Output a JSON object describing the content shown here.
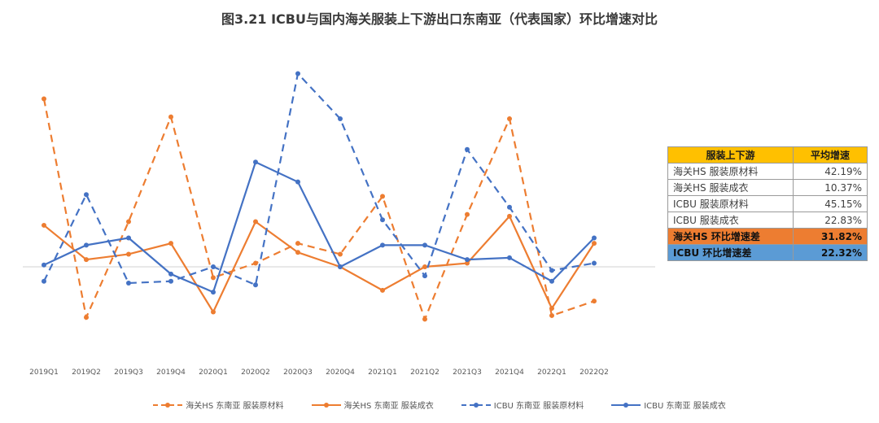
{
  "chart_data": {
    "type": "line",
    "title": "图3.21  ICBU与国内海关服装上下游出口东南亚（代表国家）环比增速对比",
    "categories": [
      "2019Q1",
      "2019Q2",
      "2019Q3",
      "2019Q4",
      "2020Q1",
      "2020Q2",
      "2020Q3",
      "2020Q4",
      "2021Q1",
      "2021Q2",
      "2021Q3",
      "2021Q4",
      "2022Q1",
      "2022Q2"
    ],
    "series": [
      {
        "name": "海关HS 东南亚 服装原材料",
        "color": "#ed7d31",
        "dash": true,
        "values": [
          0.93,
          -0.28,
          0.25,
          0.83,
          -0.06,
          0.02,
          0.13,
          0.07,
          0.39,
          -0.29,
          0.29,
          0.82,
          -0.27,
          -0.19
        ]
      },
      {
        "name": "海关HS 东南亚 服装成衣",
        "color": "#ed7d31",
        "dash": false,
        "values": [
          0.23,
          0.04,
          0.07,
          0.13,
          -0.25,
          0.25,
          0.08,
          0.0,
          -0.13,
          0.0,
          0.02,
          0.28,
          -0.23,
          0.13
        ]
      },
      {
        "name": "ICBU 东南亚 服装原材料",
        "color": "#4472c4",
        "dash": true,
        "values": [
          -0.08,
          0.4,
          -0.09,
          -0.08,
          0.0,
          -0.1,
          1.07,
          0.82,
          0.26,
          -0.05,
          0.65,
          0.33,
          -0.02,
          0.02
        ]
      },
      {
        "name": "ICBU 东南亚 服装成衣",
        "color": "#4472c4",
        "dash": false,
        "values": [
          0.01,
          0.12,
          0.16,
          -0.04,
          -0.14,
          0.58,
          0.47,
          0.0,
          0.12,
          0.12,
          0.04,
          0.05,
          -0.08,
          0.16
        ]
      }
    ]
  },
  "table": {
    "header": [
      "服装上下游",
      "平均增速"
    ],
    "rows": [
      [
        "海关HS  服装原材料",
        "42.19%"
      ],
      [
        "海关HS  服装成衣",
        "10.37%"
      ],
      [
        "ICBU  服装原材料",
        "45.15%"
      ],
      [
        "ICBU  服装成衣",
        "22.83%"
      ]
    ],
    "highlight_rows": [
      [
        "海关HS 环比增速差",
        "31.82%"
      ],
      [
        "ICBU 环比增速差",
        "22.32%"
      ]
    ]
  }
}
